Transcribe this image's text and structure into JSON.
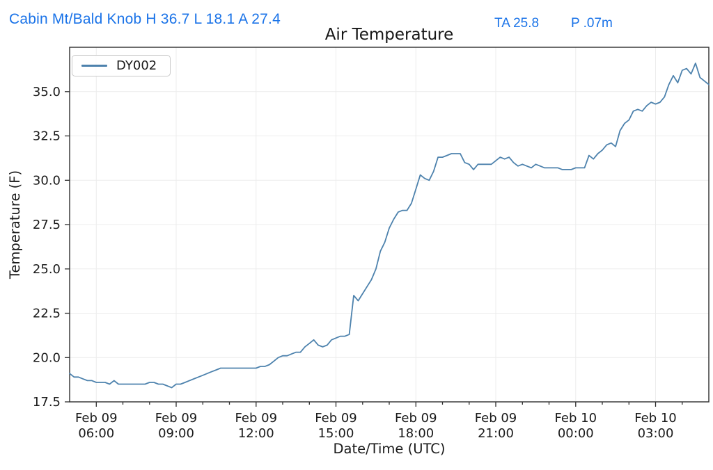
{
  "header": {
    "station_summary": "Cabin Mt/Bald Knob H 36.7 L 18.1 A 27.4",
    "ta_value": "TA 25.8",
    "precip_value": "P .07m",
    "accent_color": "#1a73e8"
  },
  "chart_data": {
    "type": "line",
    "title": "Air Temperature",
    "xlabel": "Date/Time (UTC)",
    "ylabel": "Temperature (F)",
    "legend_position": "upper left",
    "grid": true,
    "grid_color": "#ececec",
    "axis_color": "#2e2e2e",
    "text_color": "#1a1a1a",
    "line_color": "#4d82ad",
    "ylim": [
      17.5,
      37.5
    ],
    "yticks": [
      17.5,
      20.0,
      22.5,
      25.0,
      27.5,
      30.0,
      32.5,
      35.0
    ],
    "x_range_hours": [
      5,
      29
    ],
    "minor_xtick_every_hours": 1,
    "xticks": [
      {
        "hours": 6,
        "line1": "Feb 09",
        "line2": "06:00"
      },
      {
        "hours": 9,
        "line1": "Feb 09",
        "line2": "09:00"
      },
      {
        "hours": 12,
        "line1": "Feb 09",
        "line2": "12:00"
      },
      {
        "hours": 15,
        "line1": "Feb 09",
        "line2": "15:00"
      },
      {
        "hours": 18,
        "line1": "Feb 09",
        "line2": "18:00"
      },
      {
        "hours": 21,
        "line1": "Feb 09",
        "line2": "21:00"
      },
      {
        "hours": 24,
        "line1": "Feb 10",
        "line2": "00:00"
      },
      {
        "hours": 27,
        "line1": "Feb 10",
        "line2": "03:00"
      }
    ],
    "series": [
      {
        "name": "DY002",
        "start": "Feb 09 05:00 UTC",
        "end": "Feb 10 05:00 UTC",
        "step_minutes": 10,
        "values": [
          19.1,
          18.9,
          18.9,
          18.8,
          18.7,
          18.7,
          18.6,
          18.6,
          18.6,
          18.5,
          18.7,
          18.5,
          18.5,
          18.5,
          18.5,
          18.5,
          18.5,
          18.5,
          18.6,
          18.6,
          18.5,
          18.5,
          18.4,
          18.3,
          18.5,
          18.5,
          18.6,
          18.7,
          18.8,
          18.9,
          19.0,
          19.1,
          19.2,
          19.3,
          19.4,
          19.4,
          19.4,
          19.4,
          19.4,
          19.4,
          19.4,
          19.4,
          19.4,
          19.5,
          19.5,
          19.6,
          19.8,
          20.0,
          20.1,
          20.1,
          20.2,
          20.3,
          20.3,
          20.6,
          20.8,
          21.0,
          20.7,
          20.6,
          20.7,
          21.0,
          21.1,
          21.2,
          21.2,
          21.3,
          23.5,
          23.2,
          23.6,
          24.0,
          24.4,
          25.0,
          26.0,
          26.5,
          27.3,
          27.8,
          28.2,
          28.3,
          28.3,
          28.7,
          29.5,
          30.3,
          30.1,
          30.0,
          30.5,
          31.3,
          31.3,
          31.4,
          31.5,
          31.5,
          31.5,
          31.0,
          30.9,
          30.6,
          30.9,
          30.9,
          30.9,
          30.9,
          31.1,
          31.3,
          31.2,
          31.3,
          31.0,
          30.8,
          30.9,
          30.8,
          30.7,
          30.9,
          30.8,
          30.7,
          30.7,
          30.7,
          30.7,
          30.6,
          30.6,
          30.6,
          30.7,
          30.7,
          30.7,
          31.4,
          31.2,
          31.5,
          31.7,
          32.0,
          32.1,
          31.9,
          32.8,
          33.2,
          33.4,
          33.9,
          34.0,
          33.9,
          34.2,
          34.4,
          34.3,
          34.4,
          34.7,
          35.4,
          35.9,
          35.5,
          36.2,
          36.3,
          36.0,
          36.6,
          35.8,
          35.6,
          35.4
        ]
      }
    ]
  }
}
